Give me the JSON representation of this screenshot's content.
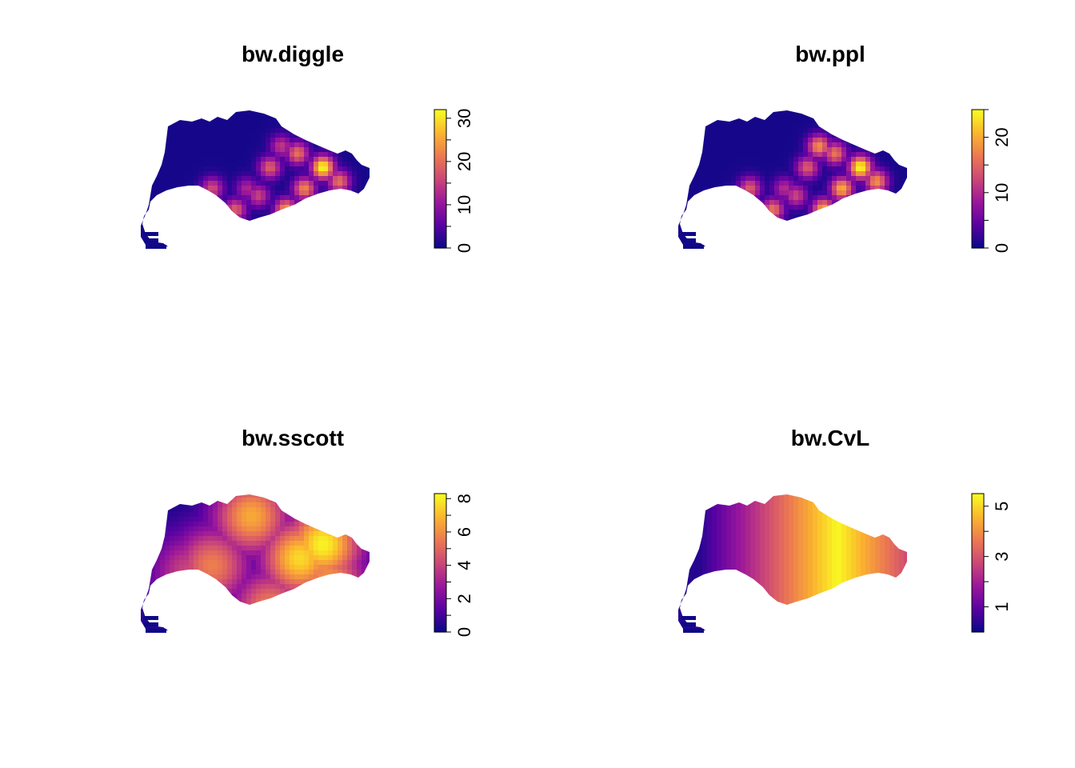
{
  "figure": {
    "layout": "2x2 grid of kernel density maps"
  },
  "palette": {
    "name": "plasma-like",
    "stops": [
      "#0d0887",
      "#5b02a3",
      "#9a179b",
      "#cb4678",
      "#eb7852",
      "#fbb32f",
      "#f9f921"
    ],
    "background": "#ffffff"
  },
  "chart_data": [
    {
      "type": "heatmap",
      "title": "bw.diggle",
      "legend_range": [
        0,
        32
      ],
      "legend_ticks": [
        0,
        10,
        20,
        30
      ],
      "legend_minor_ticks": [
        0,
        5,
        10,
        15,
        20,
        25,
        30
      ],
      "surface": "fine",
      "hotspots": [
        {
          "x": 0.45,
          "y": 0.55,
          "v": 12
        },
        {
          "x": 0.55,
          "y": 0.4,
          "v": 18
        },
        {
          "x": 0.6,
          "y": 0.25,
          "v": 14
        },
        {
          "x": 0.7,
          "y": 0.55,
          "v": 22
        },
        {
          "x": 0.78,
          "y": 0.4,
          "v": 32
        },
        {
          "x": 0.85,
          "y": 0.5,
          "v": 20
        },
        {
          "x": 0.3,
          "y": 0.55,
          "v": 16
        },
        {
          "x": 0.4,
          "y": 0.7,
          "v": 18
        },
        {
          "x": 0.62,
          "y": 0.7,
          "v": 24
        },
        {
          "x": 0.72,
          "y": 0.72,
          "v": 16
        },
        {
          "x": 0.5,
          "y": 0.6,
          "v": 15
        },
        {
          "x": 0.67,
          "y": 0.3,
          "v": 20
        }
      ]
    },
    {
      "type": "heatmap",
      "title": "bw.ppl",
      "legend_range": [
        0,
        25
      ],
      "legend_ticks": [
        0,
        10,
        20
      ],
      "legend_minor_ticks": [
        0,
        5,
        10,
        15,
        20,
        25
      ],
      "surface": "fine",
      "hotspots": [
        {
          "x": 0.45,
          "y": 0.55,
          "v": 10
        },
        {
          "x": 0.55,
          "y": 0.4,
          "v": 14
        },
        {
          "x": 0.6,
          "y": 0.25,
          "v": 18
        },
        {
          "x": 0.7,
          "y": 0.55,
          "v": 20
        },
        {
          "x": 0.78,
          "y": 0.4,
          "v": 25
        },
        {
          "x": 0.85,
          "y": 0.5,
          "v": 18
        },
        {
          "x": 0.3,
          "y": 0.55,
          "v": 14
        },
        {
          "x": 0.4,
          "y": 0.7,
          "v": 16
        },
        {
          "x": 0.62,
          "y": 0.7,
          "v": 20
        },
        {
          "x": 0.72,
          "y": 0.72,
          "v": 14
        },
        {
          "x": 0.5,
          "y": 0.6,
          "v": 12
        },
        {
          "x": 0.67,
          "y": 0.3,
          "v": 16
        }
      ]
    },
    {
      "type": "heatmap",
      "title": "bw.sscott",
      "legend_range": [
        0,
        8.3
      ],
      "legend_ticks": [
        0,
        2,
        4,
        6,
        8
      ],
      "legend_minor_ticks": [
        0,
        1,
        2,
        3,
        4,
        5,
        6,
        7,
        8
      ],
      "surface": "smooth",
      "hotspots": [
        {
          "x": 0.47,
          "y": 0.15,
          "v": 6.5
        },
        {
          "x": 0.3,
          "y": 0.5,
          "v": 5.5
        },
        {
          "x": 0.68,
          "y": 0.45,
          "v": 7.5
        },
        {
          "x": 0.78,
          "y": 0.35,
          "v": 8.0
        },
        {
          "x": 0.55,
          "y": 0.8,
          "v": 5.5
        },
        {
          "x": 0.8,
          "y": 0.6,
          "v": 6.0
        },
        {
          "x": 0.2,
          "y": 0.55,
          "v": 4.0
        }
      ]
    },
    {
      "type": "heatmap",
      "title": "bw.CvL",
      "legend_range": [
        0,
        5.5
      ],
      "legend_ticks": [
        1,
        3,
        5
      ],
      "legend_minor_ticks": [
        1,
        2,
        3,
        4,
        5
      ],
      "surface": "broad",
      "hotspots": [
        {
          "x": 0.68,
          "y": 0.55,
          "v": 5.5
        }
      ]
    }
  ]
}
